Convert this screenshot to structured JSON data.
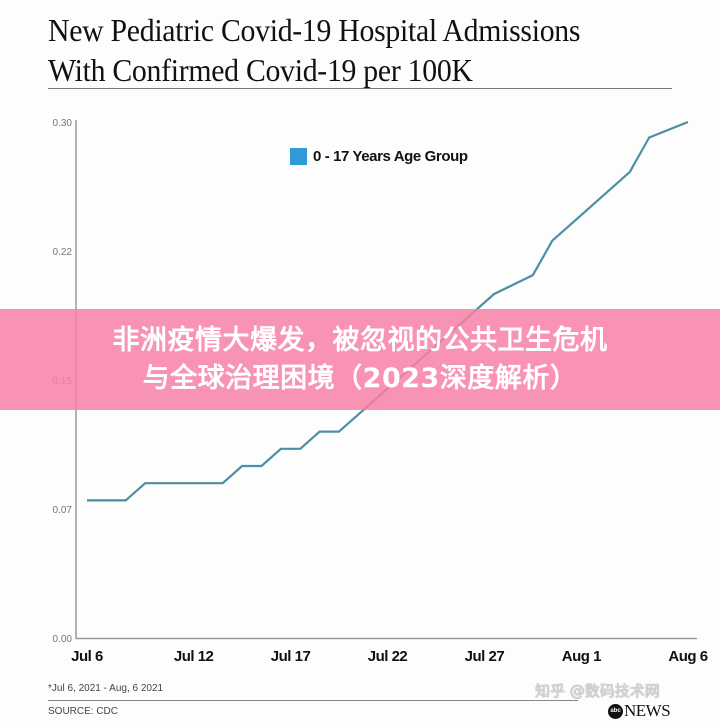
{
  "header": {
    "title_line1": "New Pediatric Covid-19 Hospital Admissions",
    "title_line2": "With Confirmed Covid-19 per 100K"
  },
  "legend": {
    "label": "0 - 17 Years Age Group",
    "color": "#2e9bd8"
  },
  "banner": {
    "line1": "非洲疫情大爆发，被忽视的公共卫生危机",
    "line2": "与全球治理困境（2023深度解析）",
    "color": "#f780a6"
  },
  "footer": {
    "footnote": "*Jul 6, 2021 - Aug, 6 2021",
    "source": "SOURCE: CDC",
    "watermark": "知乎 @数码技术网",
    "logo_abc": "abc",
    "logo_news": "NEWS"
  },
  "chart_data": {
    "type": "line",
    "title": "New Pediatric Covid-19 Hospital Admissions With Confirmed Covid-19 per 100K",
    "xlabel": "",
    "ylabel": "",
    "ylim": [
      0,
      0.3
    ],
    "grid": false,
    "legend_position": "top-center",
    "y_ticks": [
      "0.00",
      "0.07",
      "0.15",
      "0.22",
      "0.30"
    ],
    "y_tick_values": [
      0,
      0.075,
      0.15,
      0.225,
      0.3
    ],
    "x_ticks": [
      "Jul 6",
      "Jul 12",
      "Jul 17",
      "Jul 22",
      "Jul 27",
      "Aug 1",
      "Aug 6"
    ],
    "x_tick_day_index": [
      0,
      5.5,
      10.5,
      15.5,
      20.5,
      25.5,
      31
    ],
    "series": [
      {
        "name": "0 - 17 Years Age Group",
        "color": "#4a8fa3",
        "x": [
          0,
          2,
          3,
          7,
          8,
          9,
          10,
          11,
          12,
          13,
          14,
          15,
          16,
          17,
          18,
          19,
          20,
          21,
          23,
          24,
          26,
          28,
          29,
          31
        ],
        "values": [
          0.08,
          0.08,
          0.09,
          0.09,
          0.1,
          0.1,
          0.11,
          0.11,
          0.12,
          0.12,
          0.13,
          0.14,
          0.15,
          0.16,
          0.17,
          0.18,
          0.19,
          0.2,
          0.211,
          0.231,
          0.251,
          0.271,
          0.291,
          0.3
        ]
      }
    ],
    "source": "CDC",
    "date_range": "Jul 6, 2021 - Aug, 6 2021"
  }
}
